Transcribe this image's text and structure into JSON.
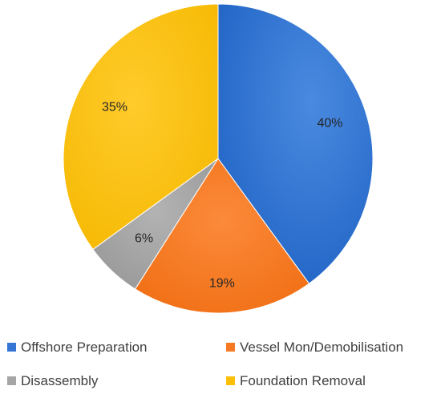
{
  "chart_data": {
    "type": "pie",
    "categories": [
      "Offshore Preparation",
      "Vessel Mon/Demobilisation",
      "Disassembly",
      "Foundation Removal"
    ],
    "values": [
      40,
      19,
      6,
      35
    ],
    "data_labels": [
      "40%",
      "19%",
      "6%",
      "35%"
    ],
    "colors": [
      "#3575d3",
      "#f57a23",
      "#a5a5a5",
      "#fdc009"
    ],
    "start_angle_deg": 0,
    "direction": "clockwise",
    "legend": "bottom"
  }
}
